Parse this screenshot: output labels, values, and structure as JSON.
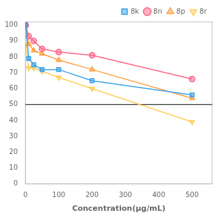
{
  "chart_data": {
    "type": "line",
    "x_label": "Concentration(μg/mL)",
    "x": [
      1,
      10,
      25,
      50,
      100,
      200,
      500
    ],
    "series": [
      {
        "name": "8k",
        "marker": "square",
        "line_style": "solid",
        "values": [
          100,
          79,
          75,
          72,
          72,
          65,
          56
        ]
      },
      {
        "name": "8n",
        "marker": "circle",
        "line_style": "solid",
        "values": [
          100,
          93,
          90,
          85,
          83,
          81,
          66
        ]
      },
      {
        "name": "8p",
        "marker": "triangle-up",
        "line_style": "solid",
        "values": [
          100,
          88,
          84,
          82,
          78,
          72,
          54
        ]
      },
      {
        "name": "8r",
        "marker": "triangle-down",
        "line_style": "solid",
        "values": [
          88,
          73,
          73,
          71,
          67,
          60,
          39
        ]
      }
    ],
    "hline": 50,
    "xlim": [
      0,
      560
    ],
    "ylim": [
      0,
      102
    ],
    "xticks": [
      0,
      100,
      200,
      300,
      400,
      500
    ],
    "yticks": [
      0,
      10,
      20,
      30,
      40,
      50,
      60,
      70,
      80,
      90,
      100
    ],
    "grid": false,
    "legend": "upper right"
  }
}
